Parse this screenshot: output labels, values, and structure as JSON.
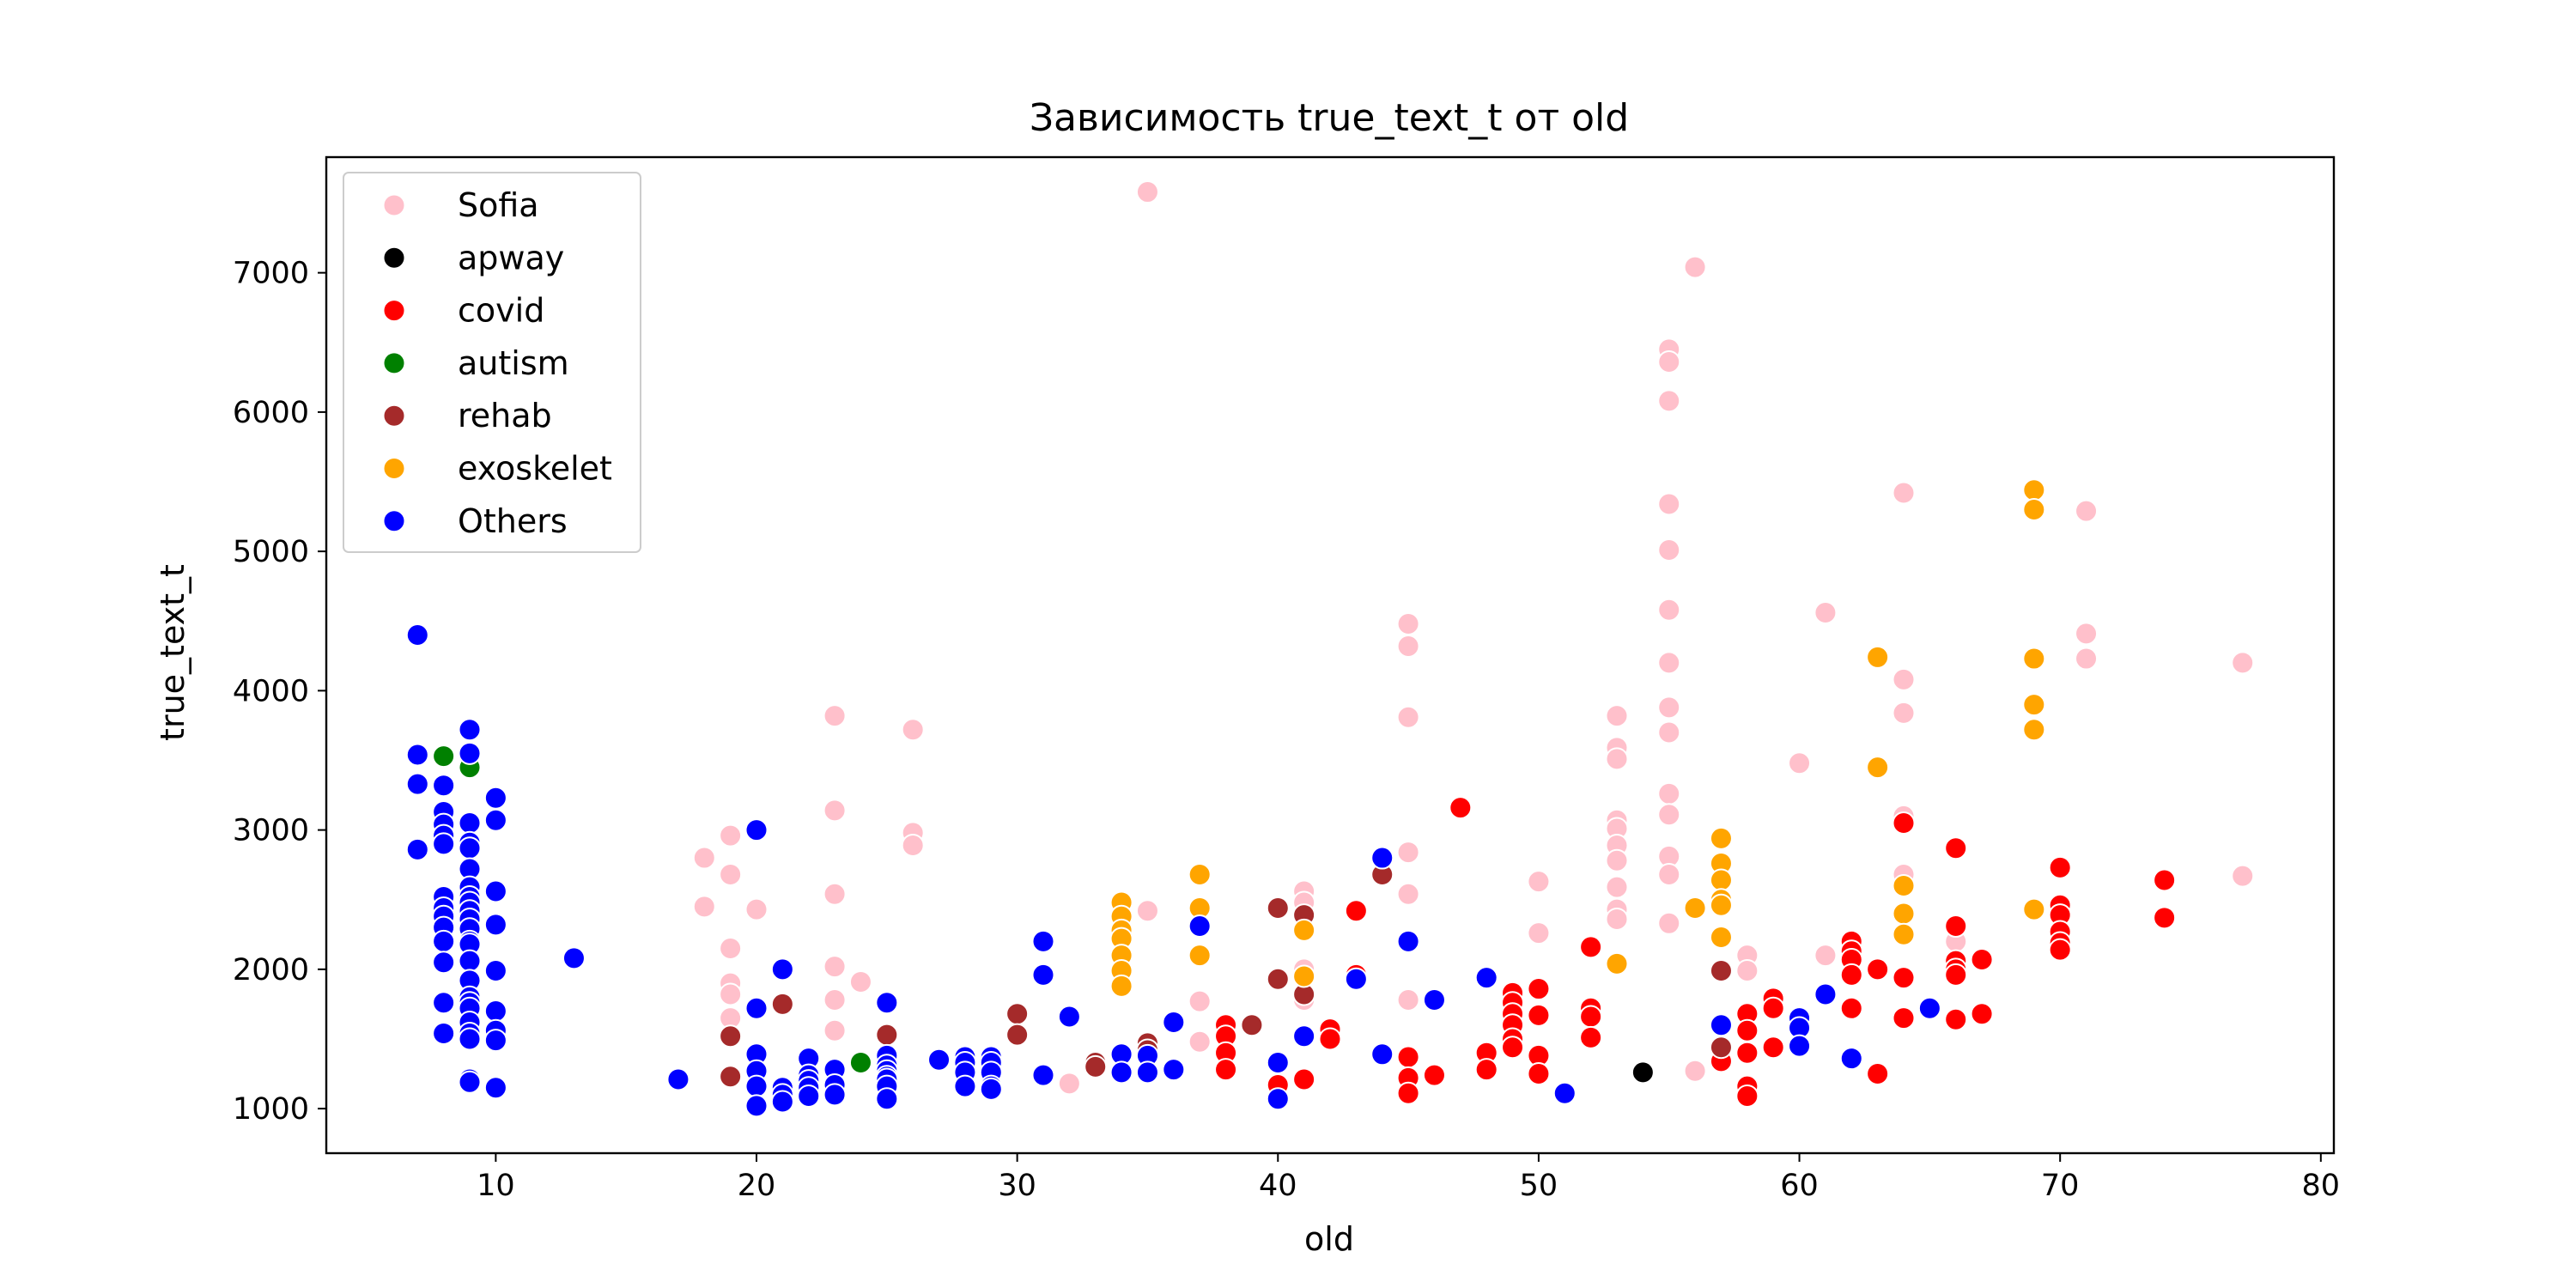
{
  "chart_data": {
    "type": "scatter",
    "title": "Зависимость true_text_t от old",
    "xlabel": "old",
    "ylabel": "true_text_t",
    "xlim": [
      3.5,
      80.5
    ],
    "ylim": [
      680,
      7830
    ],
    "xticks": [
      10,
      20,
      30,
      40,
      50,
      60,
      70,
      80
    ],
    "yticks": [
      1000,
      2000,
      3000,
      4000,
      5000,
      6000,
      7000
    ],
    "grid": false,
    "legend_position": "top-left",
    "series": [
      {
        "name": "Sofia",
        "color": "#ffc0cb",
        "points": [
          [
            18,
            2800
          ],
          [
            18,
            2450
          ],
          [
            19,
            2960
          ],
          [
            19,
            2680
          ],
          [
            19,
            2150
          ],
          [
            19,
            1900
          ],
          [
            19,
            1820
          ],
          [
            19,
            1650
          ],
          [
            20,
            2430
          ],
          [
            23,
            3820
          ],
          [
            23,
            3140
          ],
          [
            23,
            2540
          ],
          [
            23,
            2020
          ],
          [
            23,
            1780
          ],
          [
            23,
            1560
          ],
          [
            24,
            1910
          ],
          [
            26,
            3720
          ],
          [
            26,
            2980
          ],
          [
            26,
            2890
          ],
          [
            32,
            1180
          ],
          [
            35,
            7580
          ],
          [
            35,
            2420
          ],
          [
            37,
            1770
          ],
          [
            37,
            1480
          ],
          [
            41,
            2560
          ],
          [
            41,
            2480
          ],
          [
            41,
            2000
          ],
          [
            41,
            1780
          ],
          [
            45,
            4480
          ],
          [
            45,
            4320
          ],
          [
            45,
            3810
          ],
          [
            45,
            2840
          ],
          [
            45,
            2540
          ],
          [
            45,
            1780
          ],
          [
            50,
            2630
          ],
          [
            50,
            2260
          ],
          [
            53,
            3820
          ],
          [
            53,
            3590
          ],
          [
            53,
            3510
          ],
          [
            53,
            3070
          ],
          [
            53,
            3010
          ],
          [
            53,
            2890
          ],
          [
            53,
            2780
          ],
          [
            53,
            2590
          ],
          [
            53,
            2430
          ],
          [
            53,
            2360
          ],
          [
            55,
            6450
          ],
          [
            55,
            6360
          ],
          [
            55,
            6080
          ],
          [
            55,
            5340
          ],
          [
            55,
            5010
          ],
          [
            55,
            4580
          ],
          [
            55,
            4200
          ],
          [
            55,
            3880
          ],
          [
            55,
            3700
          ],
          [
            55,
            3260
          ],
          [
            55,
            3110
          ],
          [
            55,
            2810
          ],
          [
            55,
            2680
          ],
          [
            55,
            2330
          ],
          [
            56,
            7040
          ],
          [
            56,
            1270
          ],
          [
            58,
            2100
          ],
          [
            58,
            1990
          ],
          [
            60,
            3480
          ],
          [
            61,
            4560
          ],
          [
            61,
            2100
          ],
          [
            64,
            5420
          ],
          [
            64,
            4080
          ],
          [
            64,
            3840
          ],
          [
            64,
            3100
          ],
          [
            64,
            2680
          ],
          [
            66,
            2200
          ],
          [
            71,
            5290
          ],
          [
            71,
            4410
          ],
          [
            71,
            4230
          ],
          [
            77,
            4200
          ],
          [
            77,
            2670
          ]
        ]
      },
      {
        "name": "apway",
        "color": "#000000",
        "points": [
          [
            54,
            1260
          ]
        ]
      },
      {
        "name": "covid",
        "color": "#ff0000",
        "points": [
          [
            38,
            1600
          ],
          [
            38,
            1520
          ],
          [
            38,
            1400
          ],
          [
            38,
            1280
          ],
          [
            40,
            1170
          ],
          [
            41,
            1210
          ],
          [
            42,
            1570
          ],
          [
            42,
            1500
          ],
          [
            43,
            2420
          ],
          [
            43,
            1960
          ],
          [
            45,
            1370
          ],
          [
            45,
            1220
          ],
          [
            45,
            1110
          ],
          [
            46,
            1240
          ],
          [
            47,
            3160
          ],
          [
            48,
            1400
          ],
          [
            48,
            1280
          ],
          [
            49,
            1830
          ],
          [
            49,
            1760
          ],
          [
            49,
            1680
          ],
          [
            49,
            1600
          ],
          [
            49,
            1500
          ],
          [
            49,
            1440
          ],
          [
            50,
            1860
          ],
          [
            50,
            1670
          ],
          [
            50,
            1380
          ],
          [
            50,
            1250
          ],
          [
            52,
            2160
          ],
          [
            52,
            1720
          ],
          [
            52,
            1660
          ],
          [
            52,
            1510
          ],
          [
            57,
            1340
          ],
          [
            58,
            1680
          ],
          [
            58,
            1560
          ],
          [
            58,
            1400
          ],
          [
            58,
            1160
          ],
          [
            58,
            1090
          ],
          [
            59,
            1790
          ],
          [
            59,
            1720
          ],
          [
            59,
            1440
          ],
          [
            60,
            1660
          ],
          [
            62,
            2200
          ],
          [
            62,
            2130
          ],
          [
            62,
            2070
          ],
          [
            62,
            1960
          ],
          [
            62,
            1720
          ],
          [
            63,
            2000
          ],
          [
            63,
            1250
          ],
          [
            64,
            3050
          ],
          [
            64,
            1940
          ],
          [
            64,
            1650
          ],
          [
            66,
            2870
          ],
          [
            66,
            2310
          ],
          [
            66,
            2060
          ],
          [
            66,
            2000
          ],
          [
            66,
            1960
          ],
          [
            66,
            1640
          ],
          [
            67,
            2070
          ],
          [
            67,
            1680
          ],
          [
            70,
            2730
          ],
          [
            70,
            2460
          ],
          [
            70,
            2390
          ],
          [
            70,
            2270
          ],
          [
            70,
            2190
          ],
          [
            70,
            2140
          ],
          [
            74,
            2640
          ],
          [
            74,
            2370
          ]
        ]
      },
      {
        "name": "autism",
        "color": "#008000",
        "points": [
          [
            8,
            3530
          ],
          [
            9,
            3450
          ],
          [
            24,
            1330
          ]
        ]
      },
      {
        "name": "rehab",
        "color": "#a52a2a",
        "points": [
          [
            19,
            1520
          ],
          [
            19,
            1230
          ],
          [
            21,
            1750
          ],
          [
            25,
            1530
          ],
          [
            30,
            1680
          ],
          [
            30,
            1530
          ],
          [
            33,
            1330
          ],
          [
            33,
            1300
          ],
          [
            35,
            1470
          ],
          [
            35,
            1420
          ],
          [
            39,
            1600
          ],
          [
            40,
            2440
          ],
          [
            40,
            1930
          ],
          [
            41,
            2390
          ],
          [
            41,
            1820
          ],
          [
            44,
            2680
          ],
          [
            57,
            1990
          ],
          [
            57,
            1440
          ]
        ]
      },
      {
        "name": "exoskelet",
        "color": "#ffa500",
        "points": [
          [
            34,
            2480
          ],
          [
            34,
            2380
          ],
          [
            34,
            2280
          ],
          [
            34,
            2220
          ],
          [
            34,
            2100
          ],
          [
            34,
            1990
          ],
          [
            34,
            1880
          ],
          [
            37,
            2680
          ],
          [
            37,
            2440
          ],
          [
            37,
            2100
          ],
          [
            41,
            2280
          ],
          [
            41,
            1950
          ],
          [
            53,
            2040
          ],
          [
            56,
            2440
          ],
          [
            57,
            2940
          ],
          [
            57,
            2760
          ],
          [
            57,
            2640
          ],
          [
            57,
            2500
          ],
          [
            57,
            2460
          ],
          [
            57,
            2230
          ],
          [
            63,
            4240
          ],
          [
            63,
            3450
          ],
          [
            64,
            2600
          ],
          [
            64,
            2400
          ],
          [
            64,
            2250
          ],
          [
            69,
            5440
          ],
          [
            69,
            5300
          ],
          [
            69,
            4230
          ],
          [
            69,
            3900
          ],
          [
            69,
            3720
          ],
          [
            69,
            2430
          ]
        ]
      },
      {
        "name": "Others",
        "color": "#0000ff",
        "points": [
          [
            7,
            4400
          ],
          [
            7,
            3540
          ],
          [
            7,
            3330
          ],
          [
            7,
            2860
          ],
          [
            8,
            3320
          ],
          [
            8,
            3130
          ],
          [
            8,
            3040
          ],
          [
            8,
            2960
          ],
          [
            8,
            2900
          ],
          [
            8,
            2520
          ],
          [
            8,
            2440
          ],
          [
            8,
            2380
          ],
          [
            8,
            2300
          ],
          [
            8,
            2200
          ],
          [
            8,
            2050
          ],
          [
            8,
            1760
          ],
          [
            8,
            1540
          ],
          [
            9,
            3720
          ],
          [
            9,
            3550
          ],
          [
            9,
            3050
          ],
          [
            9,
            2910
          ],
          [
            9,
            2870
          ],
          [
            9,
            2720
          ],
          [
            9,
            2590
          ],
          [
            9,
            2520
          ],
          [
            9,
            2480
          ],
          [
            9,
            2420
          ],
          [
            9,
            2360
          ],
          [
            9,
            2290
          ],
          [
            9,
            2200
          ],
          [
            9,
            2180
          ],
          [
            9,
            2060
          ],
          [
            9,
            1920
          ],
          [
            9,
            1800
          ],
          [
            9,
            1760
          ],
          [
            9,
            1720
          ],
          [
            9,
            1620
          ],
          [
            9,
            1540
          ],
          [
            9,
            1500
          ],
          [
            9,
            1210
          ],
          [
            9,
            1190
          ],
          [
            10,
            3230
          ],
          [
            10,
            3070
          ],
          [
            10,
            2560
          ],
          [
            10,
            2320
          ],
          [
            10,
            1990
          ],
          [
            10,
            1700
          ],
          [
            10,
            1560
          ],
          [
            10,
            1490
          ],
          [
            10,
            1150
          ],
          [
            13,
            2080
          ],
          [
            17,
            1210
          ],
          [
            20,
            3000
          ],
          [
            20,
            1720
          ],
          [
            20,
            1390
          ],
          [
            20,
            1270
          ],
          [
            20,
            1160
          ],
          [
            20,
            1020
          ],
          [
            21,
            2000
          ],
          [
            21,
            1150
          ],
          [
            21,
            1100
          ],
          [
            21,
            1050
          ],
          [
            22,
            1360
          ],
          [
            22,
            1240
          ],
          [
            22,
            1200
          ],
          [
            22,
            1150
          ],
          [
            22,
            1090
          ],
          [
            23,
            1280
          ],
          [
            23,
            1170
          ],
          [
            23,
            1100
          ],
          [
            25,
            1760
          ],
          [
            25,
            1380
          ],
          [
            25,
            1310
          ],
          [
            25,
            1270
          ],
          [
            25,
            1230
          ],
          [
            25,
            1210
          ],
          [
            25,
            1160
          ],
          [
            25,
            1070
          ],
          [
            27,
            1350
          ],
          [
            28,
            1370
          ],
          [
            28,
            1330
          ],
          [
            28,
            1260
          ],
          [
            28,
            1160
          ],
          [
            29,
            1370
          ],
          [
            29,
            1330
          ],
          [
            29,
            1260
          ],
          [
            29,
            1160
          ],
          [
            29,
            1140
          ],
          [
            31,
            2200
          ],
          [
            31,
            1960
          ],
          [
            31,
            1240
          ],
          [
            32,
            1660
          ],
          [
            34,
            1390
          ],
          [
            34,
            1260
          ],
          [
            35,
            1380
          ],
          [
            35,
            1260
          ],
          [
            36,
            1620
          ],
          [
            36,
            1280
          ],
          [
            37,
            2310
          ],
          [
            40,
            1330
          ],
          [
            40,
            1070
          ],
          [
            41,
            1520
          ],
          [
            43,
            1930
          ],
          [
            44,
            2800
          ],
          [
            44,
            1390
          ],
          [
            45,
            2200
          ],
          [
            46,
            1780
          ],
          [
            48,
            1940
          ],
          [
            51,
            1110
          ],
          [
            57,
            1600
          ],
          [
            60,
            1650
          ],
          [
            60,
            1580
          ],
          [
            60,
            1450
          ],
          [
            61,
            1820
          ],
          [
            62,
            1360
          ],
          [
            65,
            1720
          ]
        ]
      }
    ]
  }
}
